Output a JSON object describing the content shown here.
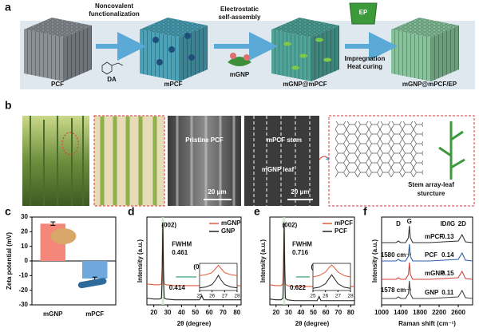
{
  "panel_a": {
    "label": "a",
    "stages": [
      "PCF",
      "mPCF",
      "mGNP@mPCF",
      "mGNP@mPCF/EP"
    ],
    "steps": [
      [
        "Noncovalent",
        "functionalization"
      ],
      [
        "Electrostatic",
        "self-assembly"
      ],
      [
        "Impregnation",
        "Heat curing"
      ]
    ],
    "reagents": [
      "DA",
      "mGNP",
      "EP"
    ]
  },
  "panel_b": {
    "label": "b",
    "sem_title": "Pristine PCF",
    "scale_bars": [
      "20 μm",
      "20 μm"
    ],
    "stem": "mPCF stem",
    "leaf": "mGNP leaf",
    "structure": [
      "Stem array-leaf",
      "sturcture"
    ]
  },
  "chart_data": [
    {
      "type": "bar",
      "label": "c",
      "ylabel": "Zeta potential (mV)",
      "categories": [
        "mGNP",
        "mPCF"
      ],
      "values": [
        25.5,
        -12
      ],
      "errors": [
        1.2,
        1
      ],
      "colors": [
        "#f4877a",
        "#6fa8dc"
      ],
      "ylim": [
        -30,
        30
      ],
      "yticks": [
        -30,
        -20,
        -10,
        0,
        10,
        20,
        30
      ]
    },
    {
      "type": "line",
      "label": "d",
      "xlabel": "2θ (degree)",
      "ylabel": "Intensity (a.u.)",
      "xlim": [
        15,
        83
      ],
      "xticks": [
        20,
        30,
        40,
        50,
        60,
        70,
        80
      ],
      "ylim": [
        0,
        105
      ],
      "legend": "upper right",
      "x": [
        15,
        20,
        24,
        25.5,
        26,
        26.5,
        27,
        27.5,
        29,
        35,
        45,
        53,
        54.6,
        56,
        65,
        75,
        83
      ],
      "series": [
        {
          "name": "mGNP",
          "color": "#e05a3a",
          "values": [
            25,
            24,
            24,
            25,
            45,
            98,
            45,
            25,
            24,
            23,
            23,
            23,
            28,
            23,
            23,
            23,
            23
          ]
        },
        {
          "name": "GNP",
          "color": "#222222",
          "values": [
            8,
            7,
            7,
            8,
            30,
            97,
            30,
            8,
            7,
            6,
            6,
            6,
            11,
            6,
            6,
            6,
            6
          ]
        }
      ],
      "annotations": [
        "(002)",
        "(004)",
        "FWHM",
        "0.461",
        "0.414"
      ],
      "inset": {
        "xlim": [
          25,
          28
        ],
        "xticks": [
          25,
          26,
          27,
          28
        ],
        "ylim": [
          0,
          100
        ],
        "x": [
          25,
          25.5,
          26,
          26.3,
          26.5,
          26.7,
          27,
          27.5,
          28
        ],
        "series_values": [
          [
            55,
            58,
            66,
            82,
            93,
            82,
            66,
            58,
            55
          ],
          [
            10,
            13,
            22,
            40,
            56,
            40,
            22,
            13,
            10
          ]
        ]
      }
    },
    {
      "type": "line",
      "label": "e",
      "xlabel": "2θ (degree)",
      "ylabel": "Intensity (a.u.)",
      "xlim": [
        15,
        83
      ],
      "xticks": [
        20,
        30,
        40,
        50,
        60,
        70,
        80
      ],
      "ylim": [
        0,
        105
      ],
      "legend": "upper right",
      "x": [
        15,
        20,
        24,
        25.5,
        26,
        26.5,
        27,
        27.5,
        29,
        35,
        45,
        53,
        54.6,
        56,
        65,
        75,
        83
      ],
      "series": [
        {
          "name": "mPCF",
          "color": "#e05a3a",
          "values": [
            24,
            23,
            23,
            25,
            50,
            98,
            50,
            25,
            23,
            22,
            22,
            22,
            27,
            22,
            22,
            22,
            22
          ]
        },
        {
          "name": "PCF",
          "color": "#222222",
          "values": [
            7,
            6,
            6,
            8,
            35,
            97,
            35,
            8,
            6,
            5,
            5,
            5,
            10,
            5,
            5,
            5,
            5
          ]
        }
      ],
      "annotations": [
        "(002)",
        "(004)",
        "FWHM",
        "0.716",
        "0.622"
      ],
      "inset": {
        "xlim": [
          25,
          28
        ],
        "xticks": [
          25,
          26,
          27,
          28
        ],
        "ylim": [
          0,
          100
        ],
        "x": [
          25,
          25.5,
          26,
          26.3,
          26.5,
          26.7,
          27,
          27.5,
          28
        ],
        "series_values": [
          [
            50,
            55,
            68,
            85,
            94,
            85,
            68,
            55,
            50
          ],
          [
            8,
            12,
            25,
            45,
            58,
            45,
            25,
            12,
            8
          ]
        ]
      }
    },
    {
      "type": "line",
      "label": "f",
      "xlabel": "Raman shift (cm⁻¹)",
      "ylabel": "Intensity (a.u.)",
      "xlim": [
        1000,
        2900
      ],
      "xticks": [
        1000,
        1400,
        1800,
        2200,
        2600
      ],
      "ylim": [
        0,
        110
      ],
      "x": [
        1000,
        1300,
        1350,
        1400,
        1500,
        1560,
        1580,
        1600,
        1650,
        2000,
        2600,
        2680,
        2750,
        2900
      ],
      "series": [
        {
          "name": "mPCF",
          "color": "#333333",
          "values": [
            78,
            78,
            80,
            78,
            78,
            84,
            99,
            84,
            78,
            78,
            80,
            88,
            79,
            78
          ]
        },
        {
          "name": "PCF",
          "color": "#2e5fa8",
          "values": [
            55,
            55,
            57,
            55,
            55,
            61,
            76,
            61,
            55,
            55,
            57,
            65,
            56,
            55
          ]
        },
        {
          "name": "mGNP",
          "color": "#d0403a",
          "values": [
            32,
            32,
            34,
            32,
            32,
            38,
            53,
            38,
            32,
            32,
            34,
            42,
            33,
            32
          ]
        },
        {
          "name": "GNP",
          "color": "#444444",
          "values": [
            8,
            8,
            10,
            8,
            8,
            14,
            30,
            14,
            8,
            8,
            10,
            18,
            9,
            8
          ]
        }
      ],
      "ratio_label": "ID/IG",
      "ratios": [
        0.13,
        0.14,
        0.15,
        0.11
      ],
      "annotations": [
        "D",
        "G",
        "2D",
        "1580 cm⁻¹",
        "1578 cm⁻¹"
      ]
    }
  ]
}
